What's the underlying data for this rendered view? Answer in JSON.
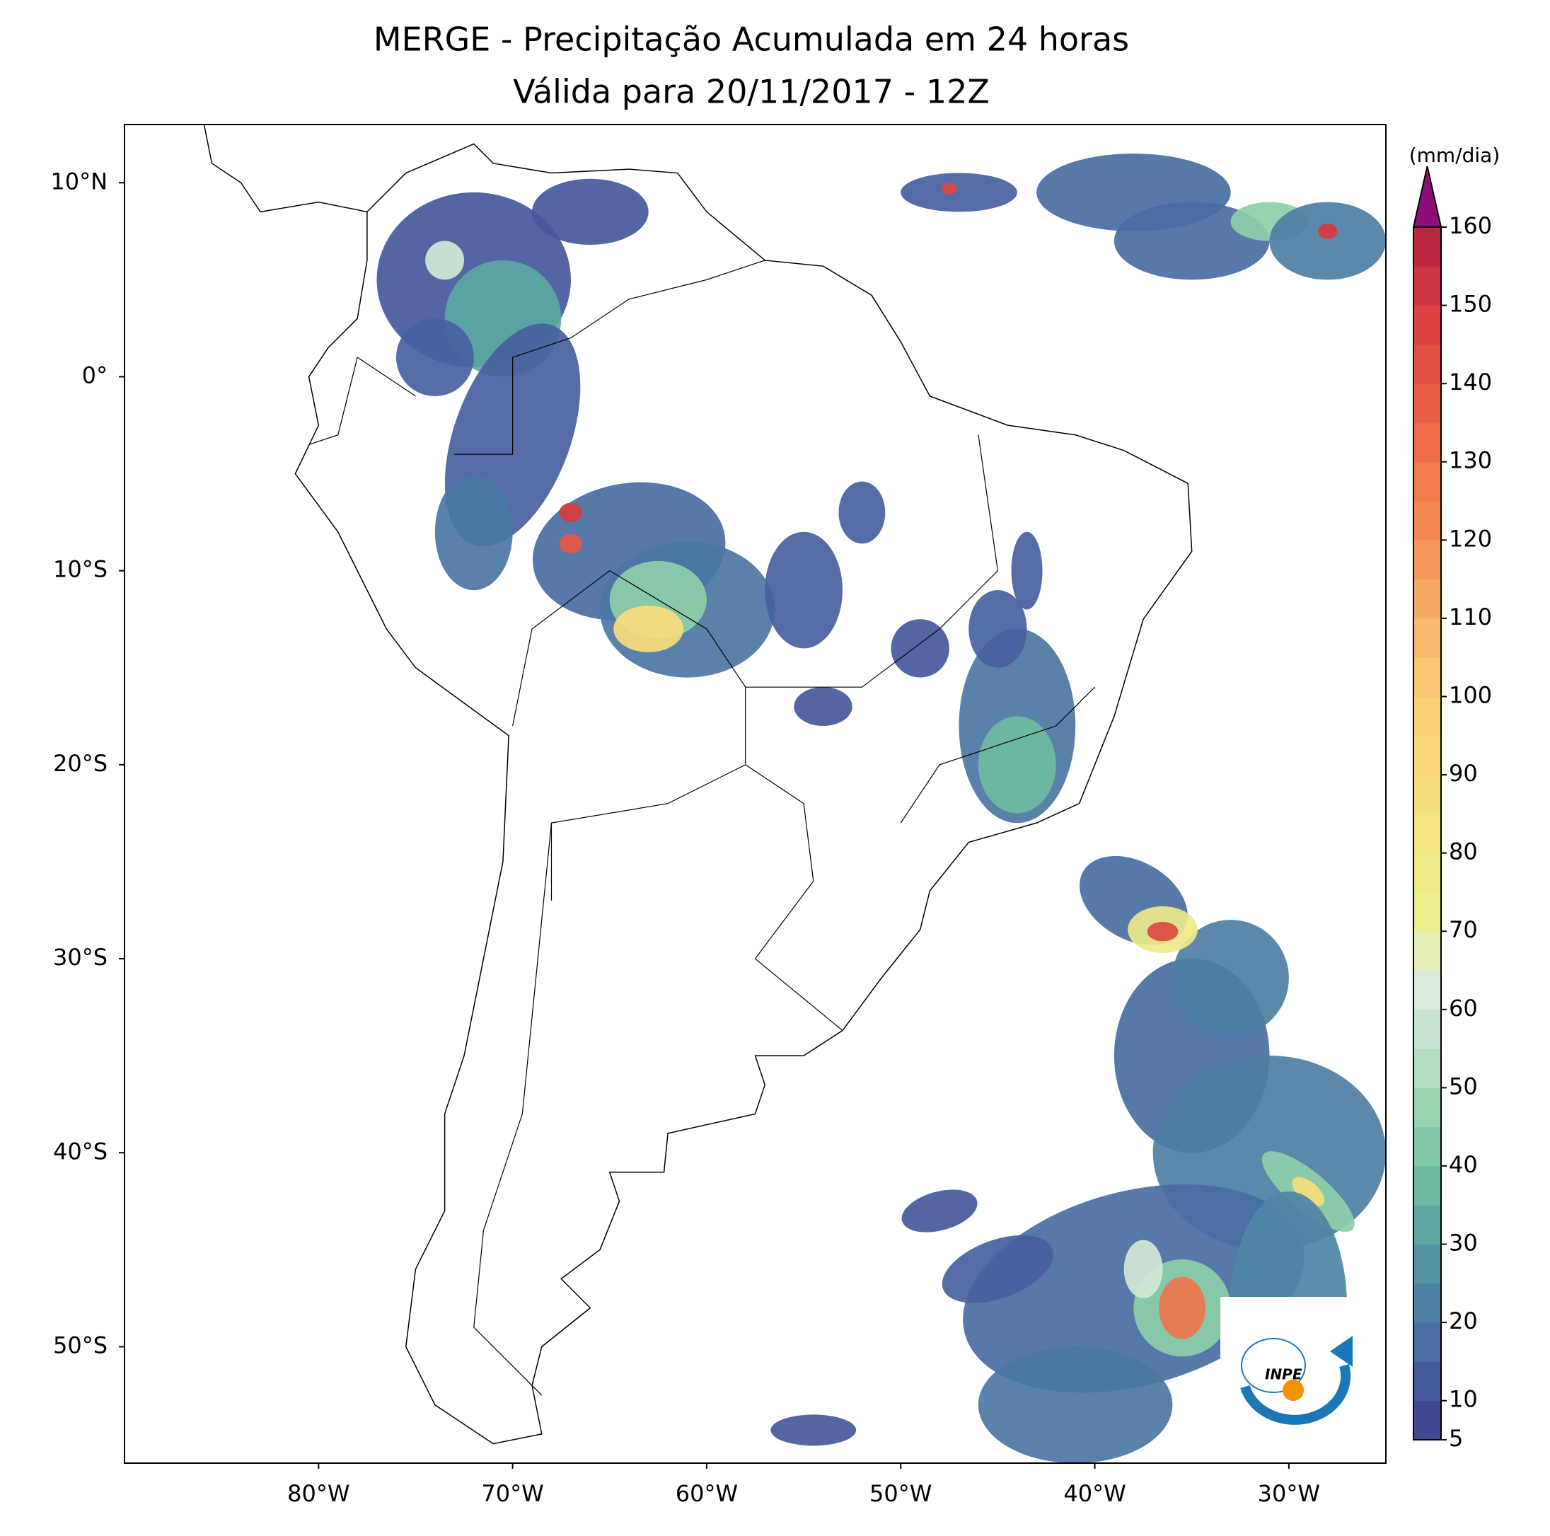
{
  "map": {
    "title": [
      "MERGE - Precipitação Acumulada em 24 horas",
      "Válida para 20/11/2017 - 12Z"
    ],
    "xlim": [
      -90,
      -25
    ],
    "ylim": [
      -56,
      13
    ],
    "xticks": [
      {
        "value": -80,
        "label": "80°W"
      },
      {
        "value": -70,
        "label": "70°W"
      },
      {
        "value": -60,
        "label": "60°W"
      },
      {
        "value": -50,
        "label": "50°W"
      },
      {
        "value": -40,
        "label": "40°W"
      },
      {
        "value": -30,
        "label": "30°W"
      }
    ],
    "yticks": [
      {
        "value": 10,
        "label": "10°N"
      },
      {
        "value": 0,
        "label": "0°"
      },
      {
        "value": -10,
        "label": "10°S"
      },
      {
        "value": -20,
        "label": "20°S"
      },
      {
        "value": -30,
        "label": "30°S"
      },
      {
        "value": -40,
        "label": "40°S"
      },
      {
        "value": -50,
        "label": "50°S"
      }
    ]
  },
  "colorbar": {
    "label": "(mm/dia)",
    "lim": [
      5,
      160
    ],
    "ticks": [
      5,
      10,
      20,
      30,
      40,
      50,
      60,
      70,
      80,
      90,
      100,
      110,
      120,
      130,
      140,
      150,
      160
    ]
  },
  "logo": "INPE"
}
